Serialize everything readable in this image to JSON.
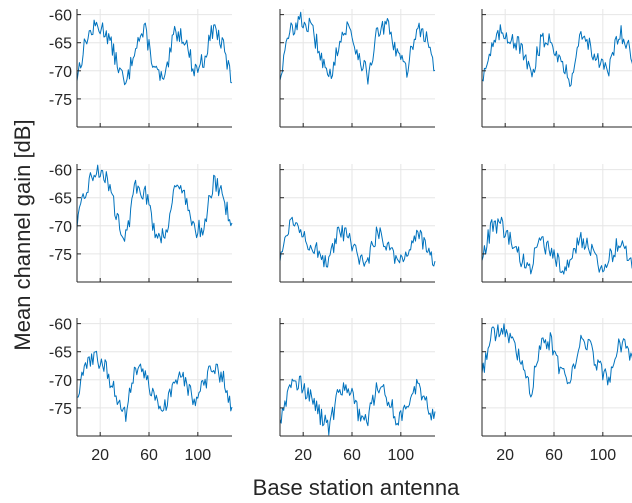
{
  "figure": {
    "xlabel": "Base station antenna",
    "ylabel": "Mean channel gain [dB]",
    "line_color": "#0072BD",
    "grid": true,
    "layout": "3x3 grid of small multiples, shared axes"
  },
  "chart_data": {
    "type": "line",
    "xlim": [
      1,
      128
    ],
    "ylim": [
      -80,
      -59
    ],
    "x_ticks": [
      20,
      60,
      100
    ],
    "y_ticks": [
      -60,
      -65,
      -70,
      -75
    ],
    "panels": [
      {
        "row": 0,
        "col": 0,
        "x": [
          1,
          9,
          17,
          25,
          33,
          41,
          49,
          57,
          65,
          73,
          81,
          89,
          97,
          105,
          113,
          121,
          128
        ],
        "y": [
          -71,
          -64,
          -62,
          -63,
          -68,
          -73,
          -65,
          -63,
          -70,
          -72,
          -63,
          -64,
          -70,
          -68,
          -62,
          -66,
          -72
        ]
      },
      {
        "row": 0,
        "col": 1,
        "x": [
          1,
          9,
          17,
          25,
          33,
          41,
          49,
          57,
          65,
          73,
          81,
          89,
          97,
          105,
          113,
          121,
          128
        ],
        "y": [
          -71,
          -63,
          -61,
          -62,
          -66,
          -72,
          -65,
          -62,
          -67,
          -71,
          -63,
          -62,
          -67,
          -70,
          -62,
          -64,
          -70
        ]
      },
      {
        "row": 0,
        "col": 2,
        "x": [
          1,
          9,
          17,
          25,
          33,
          41,
          49,
          57,
          65,
          73,
          81,
          89,
          97,
          105,
          113,
          121,
          128
        ],
        "y": [
          -71,
          -66,
          -63,
          -64,
          -66,
          -71,
          -65,
          -64,
          -68,
          -72,
          -64,
          -65,
          -69,
          -70,
          -63,
          -65,
          -72
        ]
      },
      {
        "row": 1,
        "col": 0,
        "x": [
          1,
          9,
          17,
          25,
          33,
          41,
          49,
          57,
          65,
          73,
          81,
          89,
          97,
          105,
          113,
          121,
          128
        ],
        "y": [
          -70,
          -63,
          -60,
          -61,
          -68,
          -72,
          -63,
          -64,
          -71,
          -72,
          -63,
          -64,
          -71,
          -70,
          -62,
          -65,
          -70
        ]
      },
      {
        "row": 1,
        "col": 1,
        "x": [
          1,
          9,
          17,
          25,
          33,
          41,
          49,
          57,
          65,
          73,
          81,
          89,
          97,
          105,
          113,
          121,
          128
        ],
        "y": [
          -76,
          -69,
          -70,
          -73,
          -75,
          -77,
          -71,
          -72,
          -76,
          -76,
          -71,
          -73,
          -76,
          -75,
          -71,
          -74,
          -77
        ]
      },
      {
        "row": 1,
        "col": 2,
        "x": [
          1,
          9,
          17,
          25,
          33,
          41,
          49,
          57,
          65,
          73,
          81,
          89,
          97,
          105,
          113,
          121,
          128
        ],
        "y": [
          -76,
          -70,
          -70,
          -73,
          -76,
          -77,
          -73,
          -74,
          -77,
          -77,
          -72,
          -74,
          -77,
          -76,
          -73,
          -75,
          -78
        ]
      },
      {
        "row": 2,
        "col": 0,
        "x": [
          1,
          9,
          17,
          25,
          33,
          41,
          49,
          57,
          65,
          73,
          81,
          89,
          97,
          105,
          113,
          121,
          128
        ],
        "y": [
          -73,
          -67,
          -66,
          -68,
          -73,
          -76,
          -68,
          -69,
          -74,
          -75,
          -70,
          -70,
          -74,
          -71,
          -67,
          -70,
          -76
        ]
      },
      {
        "row": 2,
        "col": 1,
        "x": [
          1,
          9,
          17,
          25,
          33,
          41,
          49,
          57,
          65,
          73,
          81,
          89,
          97,
          105,
          113,
          121,
          128
        ],
        "y": [
          -77,
          -71,
          -70,
          -73,
          -76,
          -79,
          -72,
          -71,
          -76,
          -77,
          -71,
          -73,
          -77,
          -75,
          -71,
          -74,
          -77
        ]
      },
      {
        "row": 2,
        "col": 2,
        "x": [
          1,
          9,
          17,
          25,
          33,
          41,
          49,
          57,
          65,
          73,
          81,
          89,
          97,
          105,
          113,
          121,
          128
        ],
        "y": [
          -69,
          -62,
          -61,
          -63,
          -67,
          -72,
          -64,
          -63,
          -68,
          -70,
          -63,
          -64,
          -68,
          -70,
          -63,
          -65,
          -70
        ]
      }
    ]
  }
}
